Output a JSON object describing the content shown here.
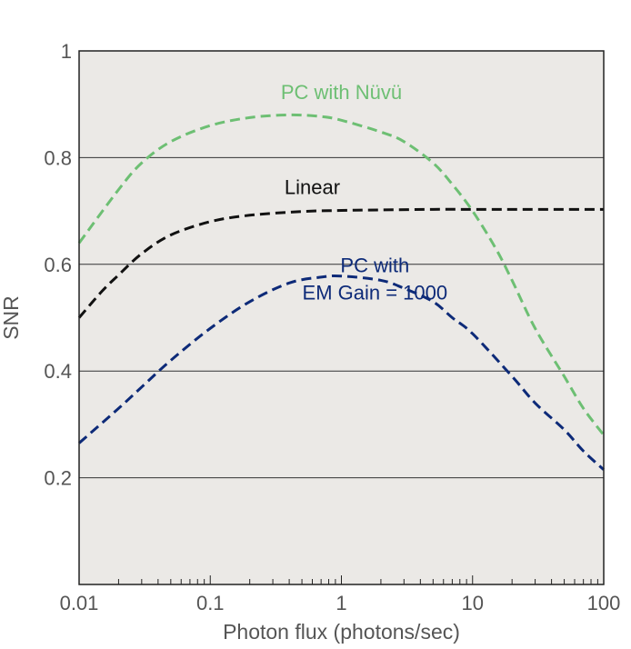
{
  "chart_data": {
    "type": "line",
    "title": "",
    "xlabel": "Photon flux (photons/sec)",
    "ylabel": "SNR",
    "xscale": "log",
    "xlim": [
      0.01,
      100
    ],
    "ylim": [
      0,
      1
    ],
    "xticks": [
      0.01,
      0.1,
      1,
      10,
      100
    ],
    "xtick_labels": [
      "0.01",
      "0.1",
      "1",
      "10",
      "100"
    ],
    "yticks": [
      0.2,
      0.4,
      0.6,
      0.8,
      1
    ],
    "ytick_labels": [
      "0.2",
      "0.4",
      "0.6",
      "0.8",
      "1"
    ],
    "grid": "horizontal",
    "background_color": "#ebe9e6",
    "series": [
      {
        "name": "PC with Nüvü",
        "color": "#6dbf73",
        "style": "dashed",
        "x": [
          0.01,
          0.02,
          0.03,
          0.05,
          0.1,
          0.2,
          0.4,
          0.7,
          1,
          2,
          3,
          5,
          7,
          10,
          15,
          20,
          30,
          50,
          70,
          100
        ],
        "y": [
          0.64,
          0.74,
          0.79,
          0.83,
          0.86,
          0.875,
          0.88,
          0.877,
          0.87,
          0.848,
          0.83,
          0.79,
          0.75,
          0.7,
          0.63,
          0.57,
          0.48,
          0.39,
          0.33,
          0.28
        ]
      },
      {
        "name": "Linear",
        "color": "#111111",
        "style": "dashed",
        "x": [
          0.01,
          0.015,
          0.02,
          0.03,
          0.05,
          0.1,
          0.2,
          0.5,
          1,
          2,
          5,
          10,
          20,
          50,
          100
        ],
        "y": [
          0.5,
          0.55,
          0.58,
          0.62,
          0.655,
          0.68,
          0.692,
          0.699,
          0.701,
          0.702,
          0.703,
          0.703,
          0.703,
          0.703,
          0.703
        ]
      },
      {
        "name": "PC with EM Gain = 1000",
        "color": "#0d2a78",
        "style": "dashed",
        "x": [
          0.01,
          0.02,
          0.03,
          0.05,
          0.1,
          0.2,
          0.4,
          0.7,
          1,
          2,
          3,
          5,
          7,
          10,
          20,
          30,
          50,
          70,
          100
        ],
        "y": [
          0.265,
          0.33,
          0.37,
          0.42,
          0.48,
          0.53,
          0.565,
          0.576,
          0.578,
          0.57,
          0.555,
          0.53,
          0.5,
          0.47,
          0.39,
          0.34,
          0.29,
          0.25,
          0.215
        ]
      }
    ],
    "annotations": [
      {
        "lines": [
          "PC with Nüvü"
        ],
        "x": 1,
        "y": 0.91,
        "color": "#6dbf73"
      },
      {
        "lines": [
          "Linear"
        ],
        "x": 0.6,
        "y": 0.732,
        "color": "#111111"
      },
      {
        "lines": [
          "PC with",
          "EM Gain = 1000"
        ],
        "x": 1.8,
        "y": 0.585,
        "color": "#0d2a78"
      }
    ]
  }
}
